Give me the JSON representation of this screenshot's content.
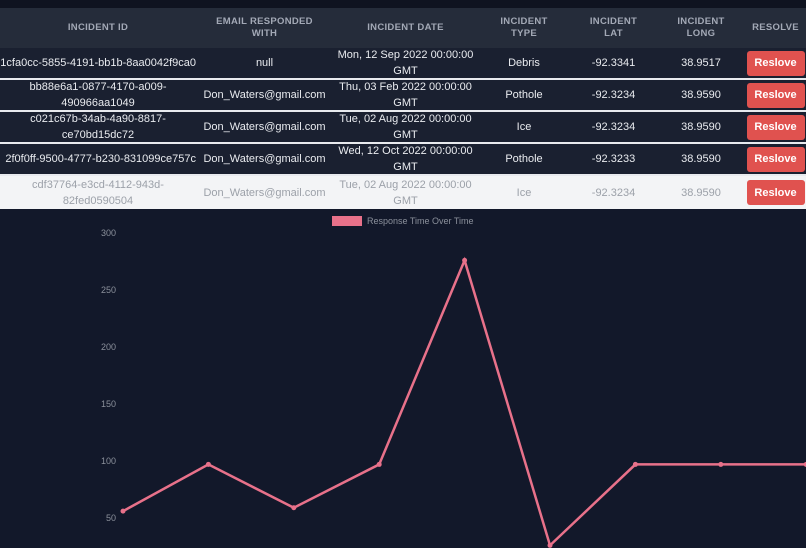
{
  "table": {
    "headers": [
      "INCIDENT ID",
      "EMAIL RESPONDED WITH",
      "INCIDENT DATE",
      "INCIDENT TYPE",
      "INCIDENT LAT",
      "INCIDENT LONG",
      "RESOLVE"
    ],
    "rows": [
      [
        "1cfa0cc-5855-4191-bb1b-8aa0042f9ca0",
        "null",
        "Mon, 12 Sep 2022 00:00:00 GMT",
        "Debris",
        "-92.3341",
        "38.9517",
        "Reslove"
      ],
      [
        "bb88e6a1-0877-4170-a009-490966aa1049",
        "Don_Waters@gmail.com",
        "Thu, 03 Feb 2022 00:00:00 GMT",
        "Pothole",
        "-92.3234",
        "38.9590",
        "Reslove"
      ],
      [
        "c021c67b-34ab-4a90-8817-ce70bd15dc72",
        "Don_Waters@gmail.com",
        "Tue, 02 Aug 2022 00:00:00 GMT",
        "Ice",
        "-92.3234",
        "38.9590",
        "Reslove"
      ],
      [
        "2f0f0ff-9500-4777-b230-831099ce757c",
        "Don_Waters@gmail.com",
        "Wed, 12 Oct 2022 00:00:00 GMT",
        "Pothole",
        "-92.3233",
        "38.9590",
        "Reslove"
      ],
      [
        "cdf37764-e3cd-4112-943d-82fed0590504",
        "Don_Waters@gmail.com",
        "Tue, 02 Aug 2022 00:00:00 GMT",
        "Ice",
        "-92.3234",
        "38.9590",
        "Reslove"
      ]
    ]
  },
  "chart_data": {
    "type": "line",
    "categories": [
      null,
      null,
      null,
      null,
      null,
      null,
      null,
      null,
      null
    ],
    "series": [
      {
        "name": "Response Time Over Time",
        "color": "#e8718a",
        "values": [
          56,
          97,
          59,
          97,
          276,
          26,
          97,
          97,
          97
        ]
      }
    ],
    "ylim": [
      0,
      300
    ],
    "yticks": [
      50,
      100,
      150,
      200,
      250,
      300
    ],
    "grid": false,
    "legend": "top"
  }
}
